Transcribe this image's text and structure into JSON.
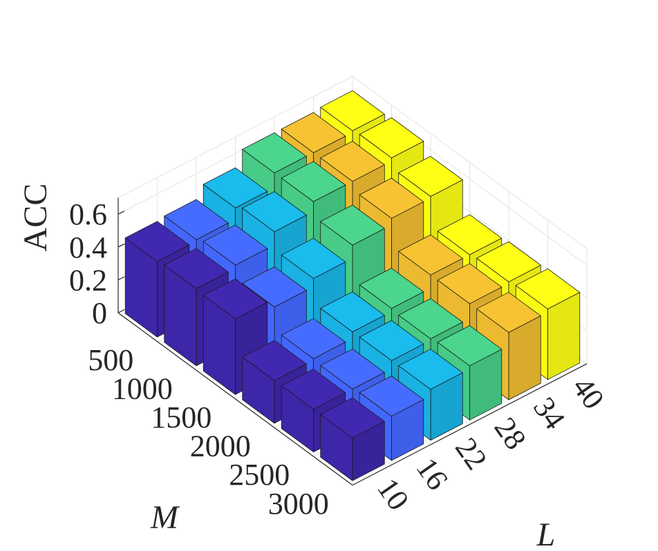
{
  "chart_data": {
    "type": "bar",
    "subtype": "3d-bar",
    "title": "",
    "xlabel": "L",
    "ylabel": "M",
    "zlabel": "ACC",
    "x_categories": [
      "10",
      "16",
      "22",
      "28",
      "34",
      "40"
    ],
    "y_categories": [
      "500",
      "1000",
      "1500",
      "2000",
      "2500",
      "3000"
    ],
    "zlim": [
      0,
      0.7
    ],
    "z_ticks": [
      "0",
      "0.2",
      "0.4",
      "0.6"
    ],
    "grid": true,
    "values": [
      [
        0.46,
        0.47,
        0.54,
        0.63,
        0.63,
        0.64
      ],
      [
        0.47,
        0.49,
        0.57,
        0.63,
        0.63,
        0.65
      ],
      [
        0.46,
        0.41,
        0.46,
        0.54,
        0.58,
        0.59
      ],
      [
        0.26,
        0.27,
        0.31,
        0.33,
        0.41,
        0.41
      ],
      [
        0.26,
        0.26,
        0.31,
        0.32,
        0.41,
        0.42
      ],
      [
        0.26,
        0.27,
        0.31,
        0.33,
        0.41,
        0.43
      ]
    ],
    "colors": {
      "10": "#3e26a8",
      "16": "#4367fd",
      "22": "#19b2e2",
      "28": "#47cb86",
      "34": "#ebba30",
      "40": "#f9fb15"
    }
  }
}
